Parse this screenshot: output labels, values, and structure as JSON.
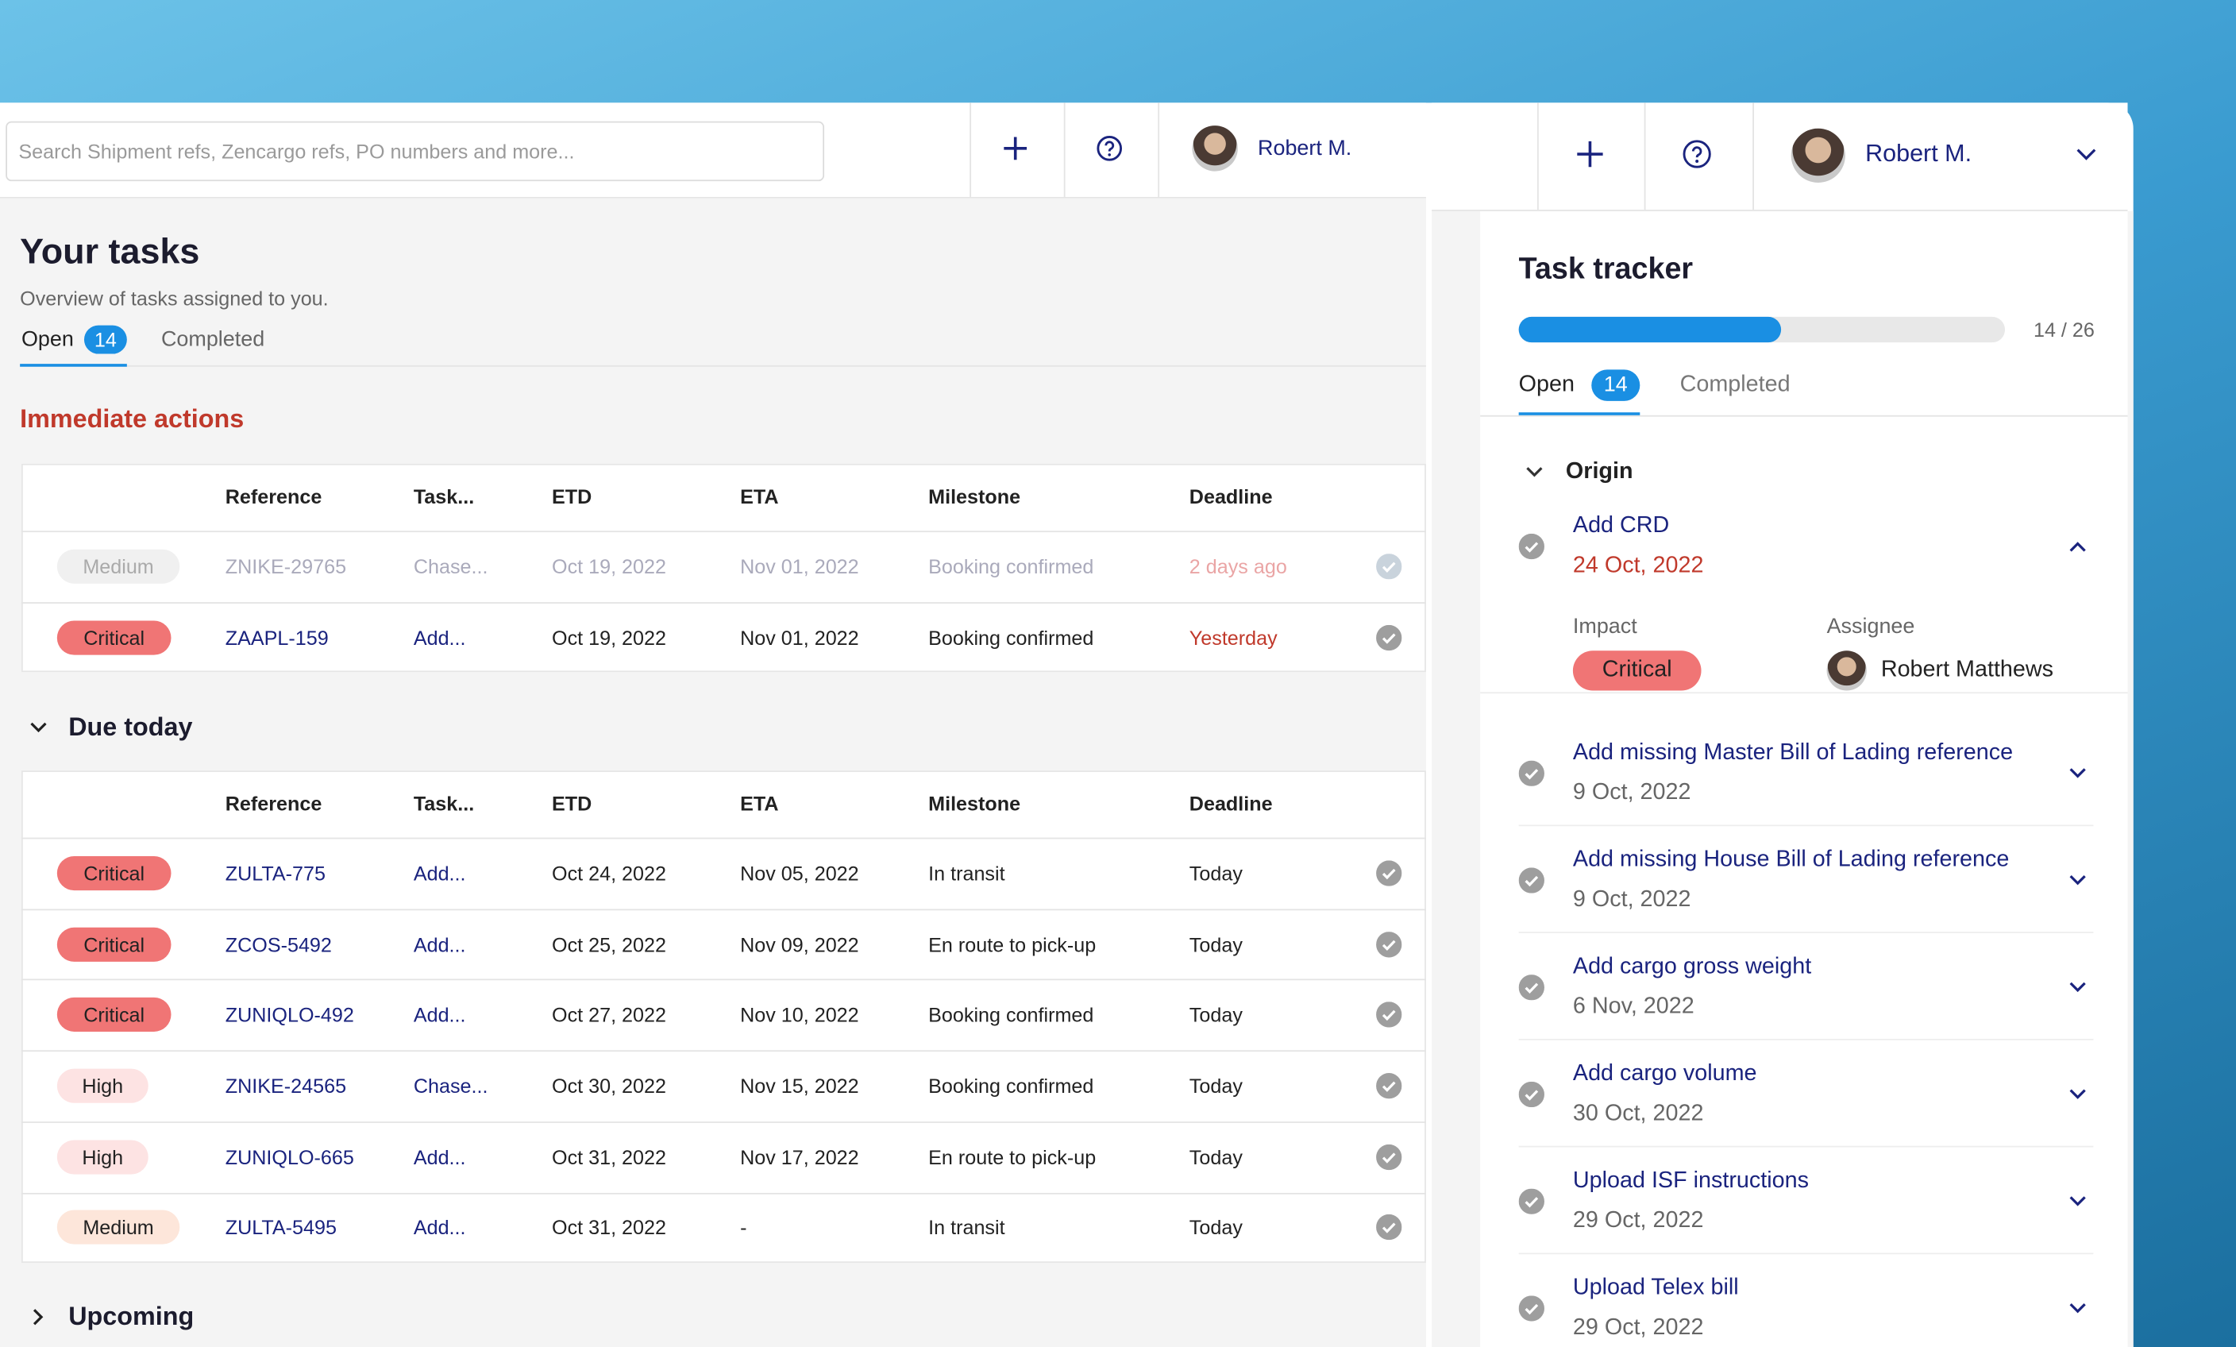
{
  "header": {
    "search_placeholder": "Search Shipment refs, Zencargo refs, PO numbers and more...",
    "user_name": "Robert M."
  },
  "tasks": {
    "title": "Your tasks",
    "subtitle": "Overview of tasks assigned to you.",
    "tabs": {
      "open": "Open",
      "open_count": 14,
      "completed": "Completed"
    },
    "columns": [
      "Reference",
      "Task...",
      "ETD",
      "ETA",
      "Milestone",
      "Deadline"
    ],
    "immediate": {
      "title": "Immediate actions",
      "rows": [
        {
          "priority": "Medium",
          "reference": "ZNIKE-29765",
          "task": "Chase...",
          "etd": "Oct 19, 2022",
          "eta": "Nov 01, 2022",
          "milestone": "Booking confirmed",
          "deadline": "2 days ago",
          "faded": true
        },
        {
          "priority": "Critical",
          "reference": "ZAAPL-159",
          "task": "Add...",
          "etd": "Oct 19, 2022",
          "eta": "Nov 01, 2022",
          "milestone": "Booking confirmed",
          "deadline": "Yesterday"
        }
      ]
    },
    "due_today": {
      "title": "Due today",
      "rows": [
        {
          "priority": "Critical",
          "reference": "ZULTA-775",
          "task": "Add...",
          "etd": "Oct 24, 2022",
          "eta": "Nov 05, 2022",
          "milestone": "In transit",
          "deadline": "Today"
        },
        {
          "priority": "Critical",
          "reference": "ZCOS-5492",
          "task": "Add...",
          "etd": "Oct 25, 2022",
          "eta": "Nov 09, 2022",
          "milestone": "En route to pick-up",
          "deadline": "Today"
        },
        {
          "priority": "Critical",
          "reference": "ZUNIQLO-492",
          "task": "Add...",
          "etd": "Oct 27, 2022",
          "eta": "Nov 10, 2022",
          "milestone": "Booking confirmed",
          "deadline": "Today"
        },
        {
          "priority": "High",
          "reference": "ZNIKE-24565",
          "task": "Chase...",
          "etd": "Oct 30, 2022",
          "eta": "Nov 15, 2022",
          "milestone": "Booking confirmed",
          "deadline": "Today"
        },
        {
          "priority": "High",
          "reference": "ZUNIQLO-665",
          "task": "Add...",
          "etd": "Oct 31, 2022",
          "eta": "Nov 17, 2022",
          "milestone": "En route to pick-up",
          "deadline": "Today"
        },
        {
          "priority": "Medium",
          "reference": "ZULTA-5495",
          "task": "Add...",
          "etd": "Oct 31, 2022",
          "eta": "-",
          "milestone": "In transit",
          "deadline": "Today"
        }
      ]
    },
    "upcoming": {
      "title": "Upcoming"
    }
  },
  "tracker": {
    "user_name": "Robert M.",
    "title": "Task tracker",
    "progress": {
      "value": 14,
      "max": 26,
      "label": "14 / 26"
    },
    "tabs": {
      "open": "Open",
      "open_count": 14,
      "completed": "Completed"
    },
    "group": "Origin",
    "expanded": {
      "title": "Add CRD",
      "date": "24 Oct, 2022",
      "impact_label": "Impact",
      "impact": "Critical",
      "assignee_label": "Assignee",
      "assignee": "Robert Matthews"
    },
    "items": [
      {
        "title": "Add missing Master Bill of Lading reference",
        "date": "9 Oct, 2022"
      },
      {
        "title": "Add missing House Bill of Lading reference",
        "date": "9 Oct, 2022"
      },
      {
        "title": "Add cargo gross weight",
        "date": "6 Nov, 2022"
      },
      {
        "title": "Add cargo volume",
        "date": "30 Oct, 2022"
      },
      {
        "title": "Upload ISF instructions",
        "date": "29 Oct, 2022"
      },
      {
        "title": "Upload Telex bill",
        "date": "29 Oct, 2022"
      }
    ]
  }
}
